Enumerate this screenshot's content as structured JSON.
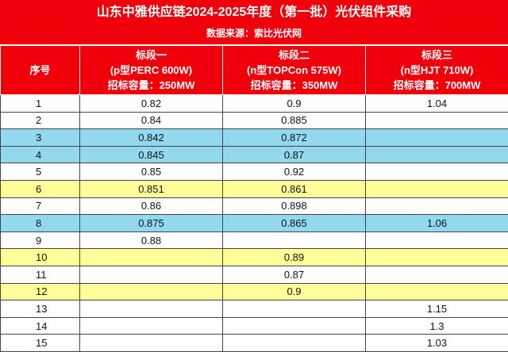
{
  "header": {
    "title": "山东中雅供应链2024-2025年度（第一批）光伏组件采购",
    "source": "数据来源：索比光伏网"
  },
  "table": {
    "columns": [
      [
        "序号"
      ],
      [
        "标段一",
        "(p型PERC 600W)",
        "招标容量：250MW"
      ],
      [
        "标段二",
        "(n型TOPCon 575W)",
        "招标容量：350MW"
      ],
      [
        "标段三",
        "(n型HJT 710W)",
        "招标容量：700MW"
      ]
    ],
    "rows": [
      [
        1,
        0.82,
        0.9,
        1.04
      ],
      [
        2,
        0.84,
        0.885,
        null
      ],
      [
        3,
        0.842,
        0.872,
        null
      ],
      [
        4,
        0.845,
        0.87,
        null
      ],
      [
        5,
        0.85,
        0.92,
        null
      ],
      [
        6,
        0.851,
        0.861,
        null
      ],
      [
        7,
        0.86,
        0.898,
        null
      ],
      [
        8,
        0.875,
        0.865,
        1.06
      ],
      [
        9,
        0.88,
        null,
        null
      ],
      [
        10,
        null,
        0.89,
        null
      ],
      [
        11,
        null,
        0.87,
        null
      ],
      [
        12,
        null,
        0.9,
        null
      ],
      [
        13,
        null,
        null,
        1.15
      ],
      [
        14,
        null,
        null,
        1.3
      ],
      [
        15,
        null,
        null,
        1.03
      ]
    ],
    "row_colors": [
      "#ffffff",
      "#ffffff",
      "#92d8ef",
      "#92d8ef",
      "#ffffff",
      "#ffff99",
      "#ffffff",
      "#92d8ef",
      "#ffffff",
      "#ffff99",
      "#ffffff",
      "#ffff99",
      "#ffffff",
      "#ffffff",
      "#ffffff"
    ]
  }
}
